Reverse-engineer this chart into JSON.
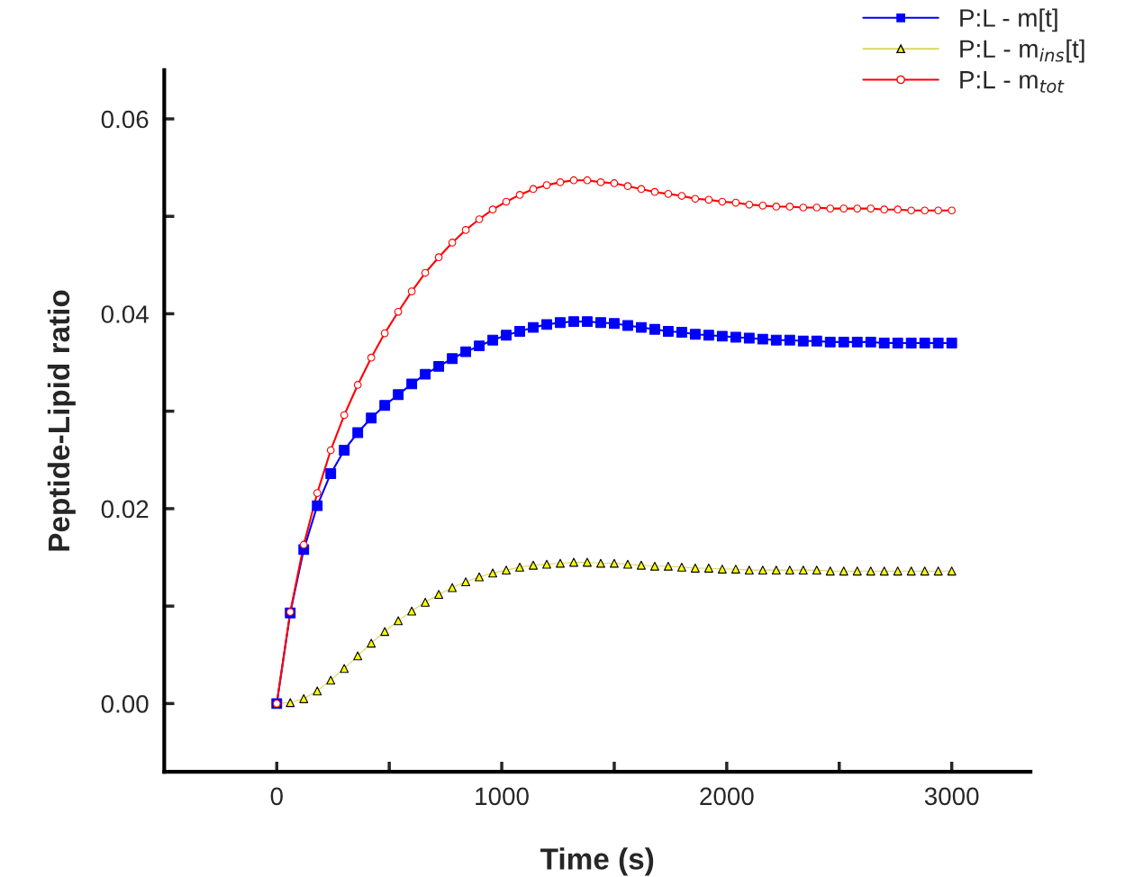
{
  "chart_data": {
    "type": "line",
    "xlabel": "Time (s)",
    "ylabel": "Peptide-Lipid ratio",
    "x": [
      0,
      60,
      120,
      180,
      240,
      300,
      360,
      420,
      480,
      540,
      600,
      660,
      720,
      780,
      840,
      900,
      960,
      1020,
      1080,
      1140,
      1200,
      1260,
      1320,
      1380,
      1440,
      1500,
      1560,
      1620,
      1680,
      1740,
      1800,
      1860,
      1920,
      1980,
      2040,
      2100,
      2160,
      2220,
      2280,
      2340,
      2400,
      2460,
      2520,
      2580,
      2640,
      2700,
      2760,
      2820,
      2880,
      2940,
      3000
    ],
    "series": [
      {
        "name": "P:L - m[t]",
        "color": "#0000ff",
        "marker": "square",
        "values": [
          0,
          0.0093,
          0.0158,
          0.0203,
          0.0236,
          0.026,
          0.0278,
          0.0293,
          0.0306,
          0.0317,
          0.0328,
          0.0338,
          0.0346,
          0.0354,
          0.0361,
          0.0367,
          0.0373,
          0.0378,
          0.0382,
          0.0386,
          0.0389,
          0.0391,
          0.0392,
          0.0392,
          0.0391,
          0.039,
          0.0388,
          0.0386,
          0.0384,
          0.0382,
          0.0381,
          0.0379,
          0.0378,
          0.0377,
          0.0376,
          0.0375,
          0.0374,
          0.0373,
          0.0373,
          0.0372,
          0.0372,
          0.0371,
          0.0371,
          0.0371,
          0.0371,
          0.037,
          0.037,
          0.037,
          0.037,
          0.037,
          0.037
        ]
      },
      {
        "name": "P:L - m$_{ins}$[t]",
        "color": "#ffff00",
        "marker": "triangle",
        "values": [
          0,
          0.0001,
          0.0005,
          0.0013,
          0.0024,
          0.0036,
          0.0049,
          0.0062,
          0.0074,
          0.0085,
          0.0095,
          0.0104,
          0.0112,
          0.0119,
          0.0125,
          0.013,
          0.0134,
          0.0137,
          0.014,
          0.0142,
          0.0143,
          0.0144,
          0.0145,
          0.0145,
          0.0144,
          0.0144,
          0.0143,
          0.0142,
          0.0141,
          0.0141,
          0.014,
          0.0139,
          0.0139,
          0.0138,
          0.0138,
          0.0137,
          0.0137,
          0.0137,
          0.0137,
          0.0137,
          0.0137,
          0.0136,
          0.0136,
          0.0136,
          0.0136,
          0.0136,
          0.0136,
          0.0136,
          0.0136,
          0.0136,
          0.0136
        ]
      },
      {
        "name": "P:L - m$_{tot}$",
        "color": "#ff0000",
        "marker": "circle",
        "values": [
          0,
          0.0094,
          0.0163,
          0.0216,
          0.026,
          0.0296,
          0.0327,
          0.0355,
          0.038,
          0.0402,
          0.0423,
          0.0442,
          0.0458,
          0.0473,
          0.0486,
          0.0497,
          0.0507,
          0.0515,
          0.0522,
          0.0528,
          0.0532,
          0.0535,
          0.0537,
          0.0537,
          0.0535,
          0.0534,
          0.0531,
          0.0528,
          0.0525,
          0.0523,
          0.0521,
          0.0518,
          0.0517,
          0.0515,
          0.0514,
          0.0512,
          0.0511,
          0.051,
          0.051,
          0.0509,
          0.0509,
          0.0508,
          0.0508,
          0.0508,
          0.0508,
          0.0507,
          0.0507,
          0.0506,
          0.0506,
          0.0506,
          0.0506
        ]
      }
    ],
    "xlim": [
      -500,
      3350
    ],
    "ylim": [
      -0.007,
      0.065
    ],
    "xticks": [
      0,
      {
        "value": 500,
        "label": null
      },
      1000,
      {
        "value": 1500,
        "label": null
      },
      2000,
      {
        "value": 2500,
        "label": null
      },
      3000
    ],
    "yticks": [
      {
        "value": 0,
        "label": "0.00"
      },
      {
        "value": 0.01,
        "label": null
      },
      {
        "value": 0.02,
        "label": "0.02"
      },
      {
        "value": 0.03,
        "label": null
      },
      {
        "value": 0.04,
        "label": "0.04"
      },
      {
        "value": 0.05,
        "label": null
      },
      {
        "value": 0.06,
        "label": "0.06"
      }
    ],
    "grid": false,
    "legend": "top right",
    "line_style": "solid"
  }
}
